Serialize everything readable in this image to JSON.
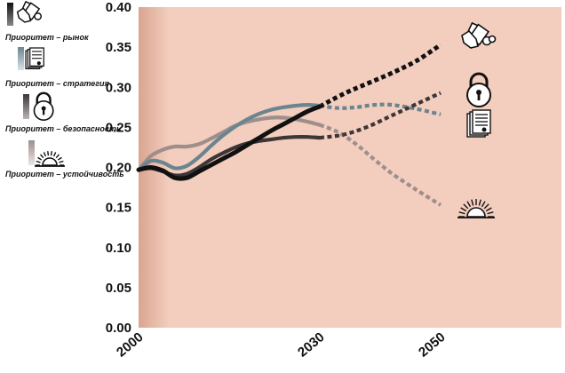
{
  "chart_data": {
    "type": "line",
    "title": "",
    "xlabel": "",
    "ylabel": "",
    "xlim": [
      2000,
      2070
    ],
    "ylim": [
      0,
      0.4
    ],
    "grid": false,
    "legend_position": "left",
    "background_color": "#f3cdbd",
    "x_ticks": [
      {
        "value": 2000,
        "label": "2000"
      },
      {
        "value": 2030,
        "label": "2030"
      },
      {
        "value": 2050,
        "label": "2050"
      }
    ],
    "y_ticks": [
      {
        "value": 0.4,
        "label": "0.40"
      },
      {
        "value": 0.35,
        "label": "0.35"
      },
      {
        "value": 0.3,
        "label": "0.30"
      },
      {
        "value": 0.25,
        "label": "0.25"
      },
      {
        "value": 0.2,
        "label": "0.20"
      },
      {
        "value": 0.15,
        "label": "0.15"
      },
      {
        "value": 0.1,
        "label": "0.10"
      },
      {
        "value": 0.05,
        "label": "0.05"
      },
      {
        "value": 0.0,
        "label": "0.00"
      }
    ],
    "series": [
      {
        "name": "Приоритет – рынок",
        "color": "#111111",
        "icon": "hand-money-icon",
        "historical": [
          [
            2000,
            0.197
          ],
          [
            2002,
            0.2
          ],
          [
            2004,
            0.196
          ],
          [
            2006,
            0.187
          ],
          [
            2008,
            0.187
          ],
          [
            2010,
            0.195
          ],
          [
            2012,
            0.203
          ],
          [
            2014,
            0.211
          ],
          [
            2016,
            0.219
          ],
          [
            2018,
            0.228
          ],
          [
            2020,
            0.237
          ],
          [
            2022,
            0.246
          ],
          [
            2024,
            0.254
          ],
          [
            2026,
            0.262
          ],
          [
            2028,
            0.27
          ],
          [
            2030,
            0.276
          ]
        ],
        "projection": [
          [
            2030,
            0.276
          ],
          [
            2034,
            0.292
          ],
          [
            2038,
            0.305
          ],
          [
            2042,
            0.318
          ],
          [
            2046,
            0.333
          ],
          [
            2050,
            0.353
          ]
        ]
      },
      {
        "name": "Приоритет – стратегия",
        "color": "#6b8590",
        "icon": "documents-icon",
        "historical": [
          [
            2000,
            0.197
          ],
          [
            2002,
            0.208
          ],
          [
            2004,
            0.206
          ],
          [
            2006,
            0.199
          ],
          [
            2008,
            0.202
          ],
          [
            2010,
            0.213
          ],
          [
            2012,
            0.227
          ],
          [
            2014,
            0.24
          ],
          [
            2016,
            0.251
          ],
          [
            2018,
            0.26
          ],
          [
            2020,
            0.267
          ],
          [
            2022,
            0.272
          ],
          [
            2024,
            0.275
          ],
          [
            2026,
            0.277
          ],
          [
            2028,
            0.278
          ],
          [
            2030,
            0.277
          ]
        ],
        "projection": [
          [
            2030,
            0.277
          ],
          [
            2033,
            0.274
          ],
          [
            2036,
            0.275
          ],
          [
            2039,
            0.278
          ],
          [
            2042,
            0.278
          ],
          [
            2046,
            0.273
          ],
          [
            2050,
            0.266
          ]
        ]
      },
      {
        "name": "Приоритет – безопасность",
        "color": "#3d3637",
        "icon": "padlock-icon",
        "historical": [
          [
            2000,
            0.197
          ],
          [
            2002,
            0.199
          ],
          [
            2004,
            0.195
          ],
          [
            2006,
            0.19
          ],
          [
            2008,
            0.192
          ],
          [
            2010,
            0.2
          ],
          [
            2012,
            0.21
          ],
          [
            2014,
            0.218
          ],
          [
            2016,
            0.225
          ],
          [
            2018,
            0.23
          ],
          [
            2020,
            0.233
          ],
          [
            2022,
            0.235
          ],
          [
            2024,
            0.237
          ],
          [
            2026,
            0.238
          ],
          [
            2028,
            0.238
          ],
          [
            2030,
            0.237
          ]
        ],
        "projection": [
          [
            2030,
            0.237
          ],
          [
            2034,
            0.241
          ],
          [
            2038,
            0.251
          ],
          [
            2042,
            0.265
          ],
          [
            2046,
            0.279
          ],
          [
            2050,
            0.293
          ]
        ]
      },
      {
        "name": "Приоритет – устойчивость",
        "color": "#9e8e8c",
        "icon": "rising-sun-icon",
        "historical": [
          [
            2000,
            0.197
          ],
          [
            2002,
            0.214
          ],
          [
            2004,
            0.222
          ],
          [
            2006,
            0.226
          ],
          [
            2008,
            0.226
          ],
          [
            2010,
            0.229
          ],
          [
            2012,
            0.236
          ],
          [
            2014,
            0.244
          ],
          [
            2016,
            0.252
          ],
          [
            2018,
            0.257
          ],
          [
            2020,
            0.26
          ],
          [
            2022,
            0.262
          ],
          [
            2024,
            0.262
          ],
          [
            2026,
            0.26
          ],
          [
            2028,
            0.257
          ],
          [
            2030,
            0.253
          ]
        ],
        "projection": [
          [
            2030,
            0.253
          ],
          [
            2033,
            0.244
          ],
          [
            2036,
            0.229
          ],
          [
            2039,
            0.21
          ],
          [
            2042,
            0.192
          ],
          [
            2046,
            0.172
          ],
          [
            2050,
            0.153
          ]
        ]
      }
    ]
  }
}
